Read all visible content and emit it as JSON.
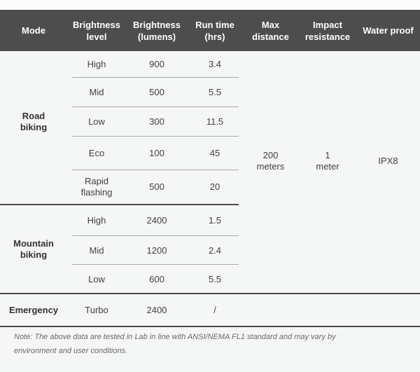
{
  "table": {
    "headers": [
      "Mode",
      "Brightness level",
      "Brightness (lumens)",
      "Run time (hrs)",
      "Max distance",
      "Impact resistance",
      "Water proof"
    ],
    "sections": [
      {
        "mode": "Road biking",
        "rows": [
          {
            "level": "High",
            "lumens": "900",
            "runtime": "3.4"
          },
          {
            "level": "Mid",
            "lumens": "500",
            "runtime": "5.5"
          },
          {
            "level": "Low",
            "lumens": "300",
            "runtime": "11.5"
          },
          {
            "level": "Eco",
            "lumens": "100",
            "runtime": "45"
          },
          {
            "level": "Rapid flashing",
            "lumens": "500",
            "runtime": "20"
          }
        ]
      },
      {
        "mode": "Mountain biking",
        "rows": [
          {
            "level": "High",
            "lumens": "2400",
            "runtime": "1.5"
          },
          {
            "level": "Mid",
            "lumens": "1200",
            "runtime": "2.4"
          },
          {
            "level": "Low",
            "lumens": "600",
            "runtime": "5.5"
          }
        ]
      },
      {
        "mode": "Emergency",
        "rows": [
          {
            "level": "Turbo",
            "lumens": "2400",
            "runtime": "/"
          }
        ]
      }
    ],
    "merged": {
      "max_distance": "200 meters",
      "impact_resistance": "1 meter",
      "water_proof": "IPX8"
    }
  },
  "note": "Note: The above data are tested in Lab in line with ANSI/NEMA FL1 standard and may vary by environment and user conditions.",
  "colors": {
    "header_bg": "#4d4d4d",
    "header_text": "#ffffff",
    "body_bg": "#f5f6f6",
    "body_text": "#404040",
    "divider_light": "#ababab",
    "divider_dark": "#4b4b4b",
    "note_text": "#696969"
  }
}
